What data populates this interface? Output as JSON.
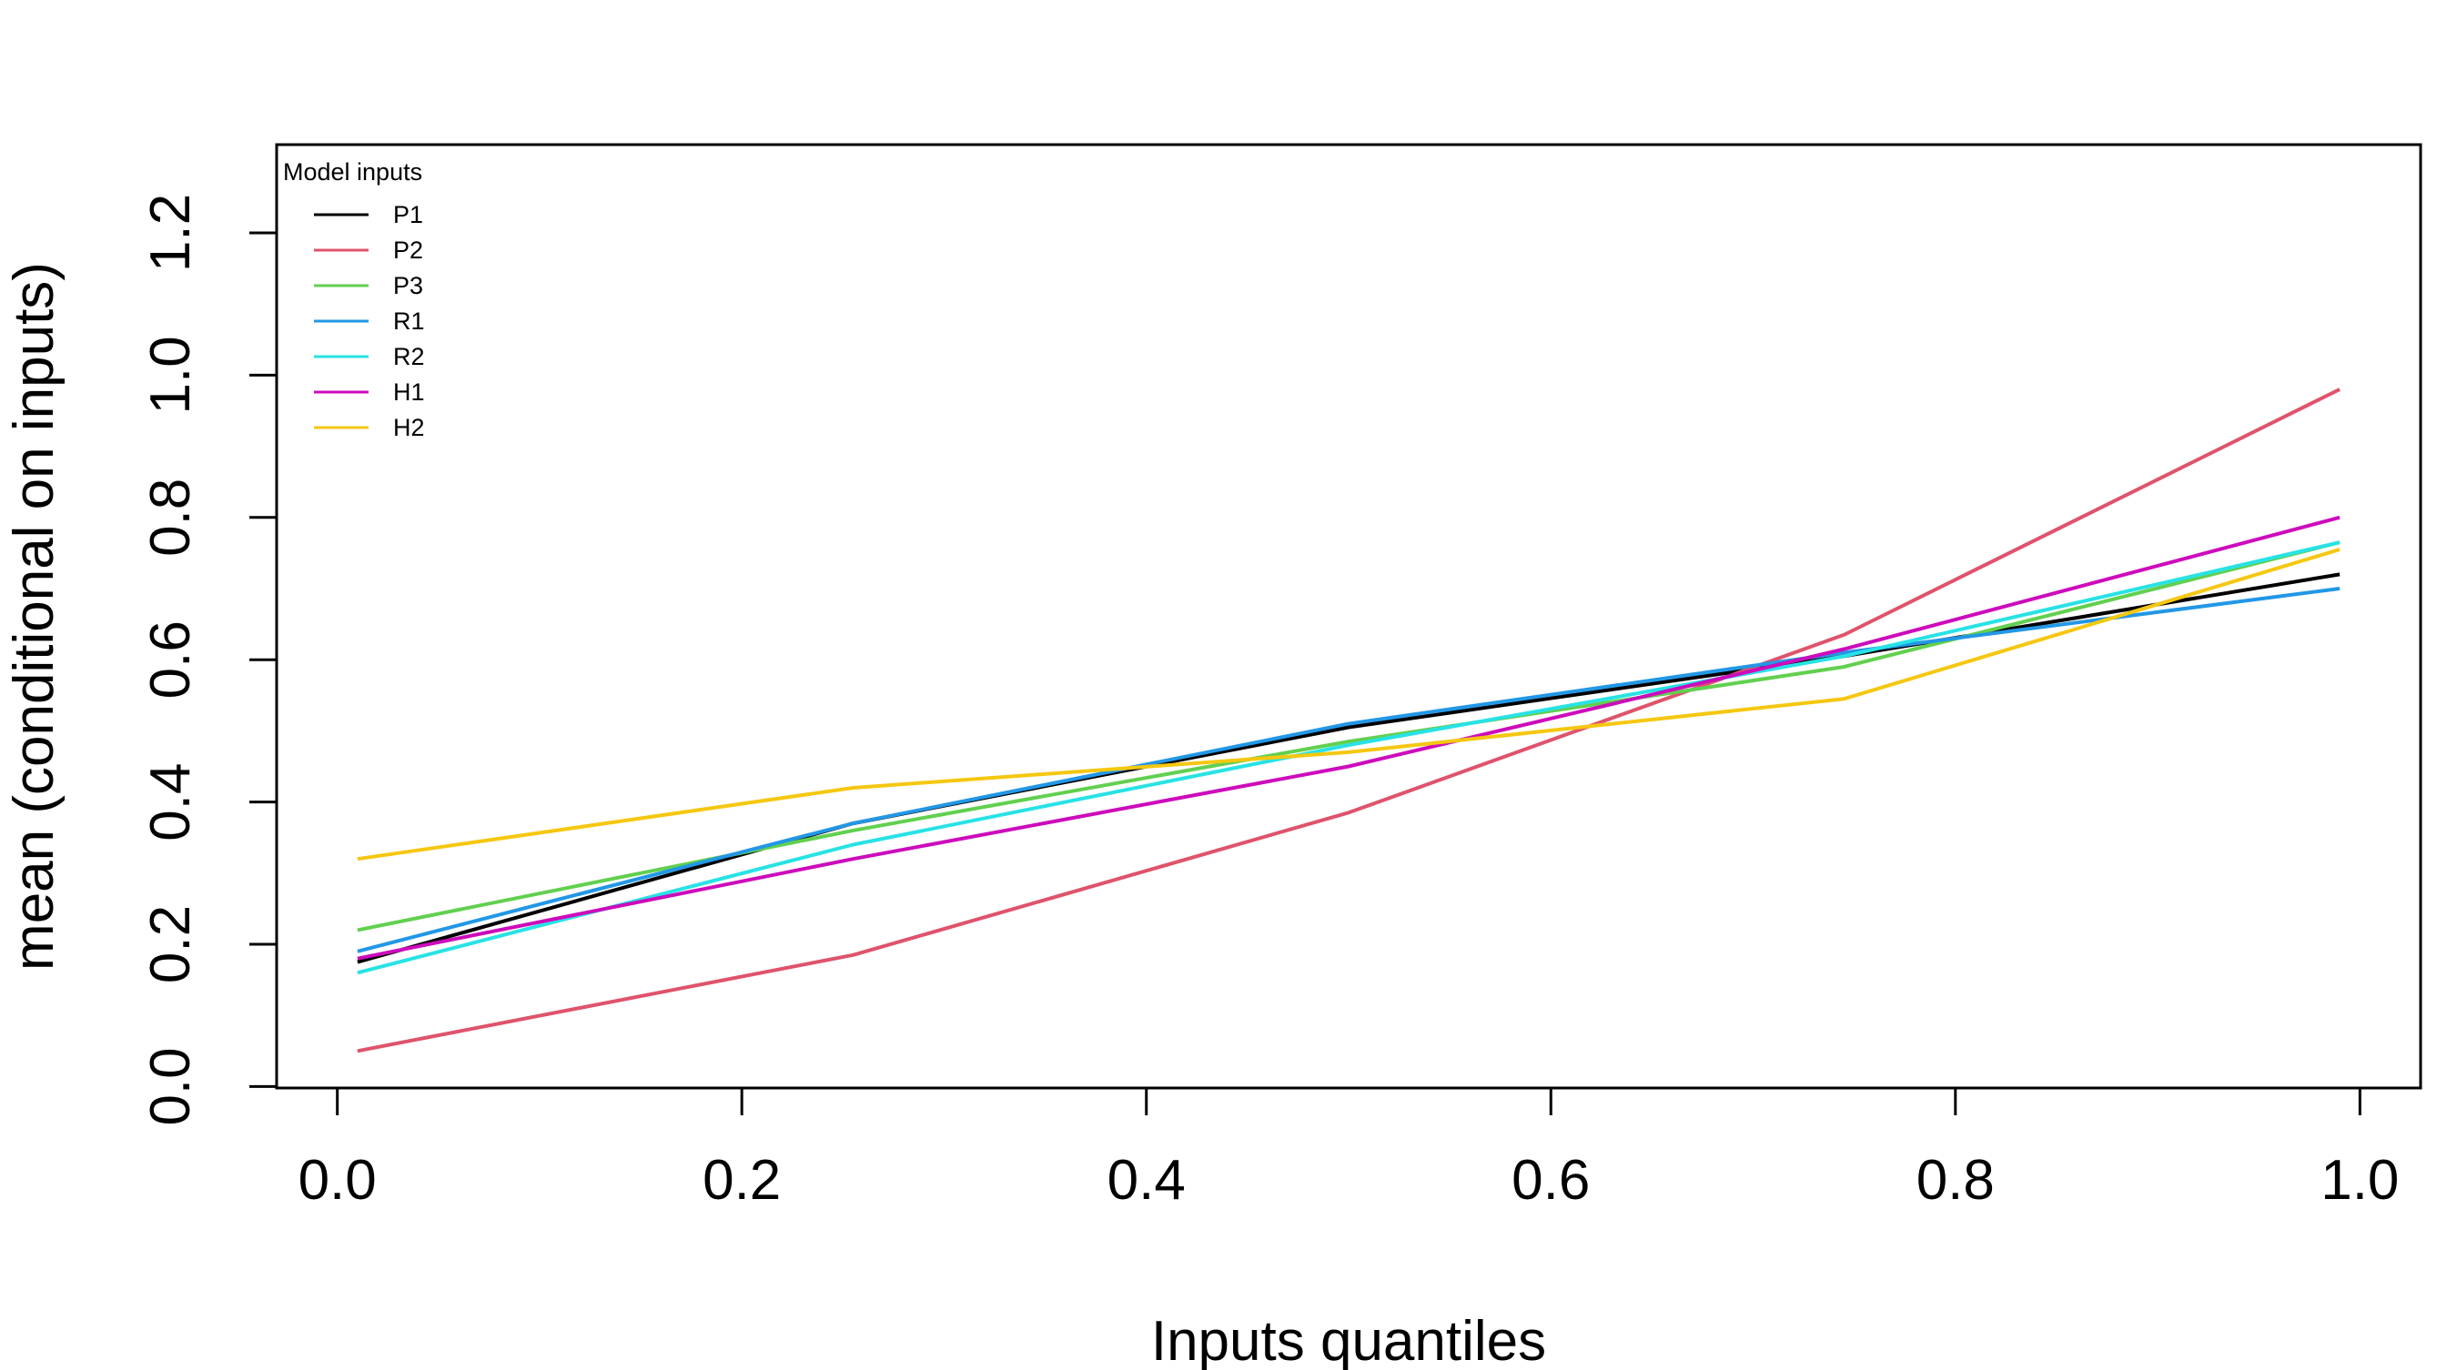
{
  "chart_data": {
    "type": "line",
    "title": "",
    "xlabel": "Inputs quantiles",
    "ylabel": "mean (conditional on inputs)",
    "xlim": [
      -0.03,
      1.03
    ],
    "ylim": [
      -0.002,
      1.324
    ],
    "x_ticks": [
      "0.0",
      "0.2",
      "0.4",
      "0.6",
      "0.8",
      "1.0"
    ],
    "y_ticks": [
      "0.0",
      "0.2",
      "0.4",
      "0.6",
      "0.8",
      "1.0",
      "1.2"
    ],
    "grid": false,
    "legend": {
      "title": "Model inputs",
      "placement": "top-left"
    },
    "x": [
      0.01,
      0.255,
      0.5,
      0.745,
      0.99
    ],
    "series": [
      {
        "name": "P1",
        "color": "#000000",
        "values": [
          0.175,
          0.37,
          0.505,
          0.605,
          0.72
        ]
      },
      {
        "name": "P2",
        "color": "#DF536B",
        "values": [
          0.05,
          0.185,
          0.385,
          0.635,
          0.98
        ]
      },
      {
        "name": "P3",
        "color": "#61D04F",
        "values": [
          0.22,
          0.36,
          0.485,
          0.59,
          0.765
        ]
      },
      {
        "name": "R1",
        "color": "#2297E6",
        "values": [
          0.19,
          0.37,
          0.51,
          0.61,
          0.7
        ]
      },
      {
        "name": "R2",
        "color": "#28E2E5",
        "values": [
          0.16,
          0.34,
          0.48,
          0.605,
          0.765
        ]
      },
      {
        "name": "H1",
        "color": "#CD0BBC",
        "values": [
          0.18,
          0.32,
          0.45,
          0.615,
          0.8
        ]
      },
      {
        "name": "H2",
        "color": "#F5C710",
        "values": [
          0.32,
          0.42,
          0.47,
          0.545,
          0.755
        ]
      }
    ]
  }
}
